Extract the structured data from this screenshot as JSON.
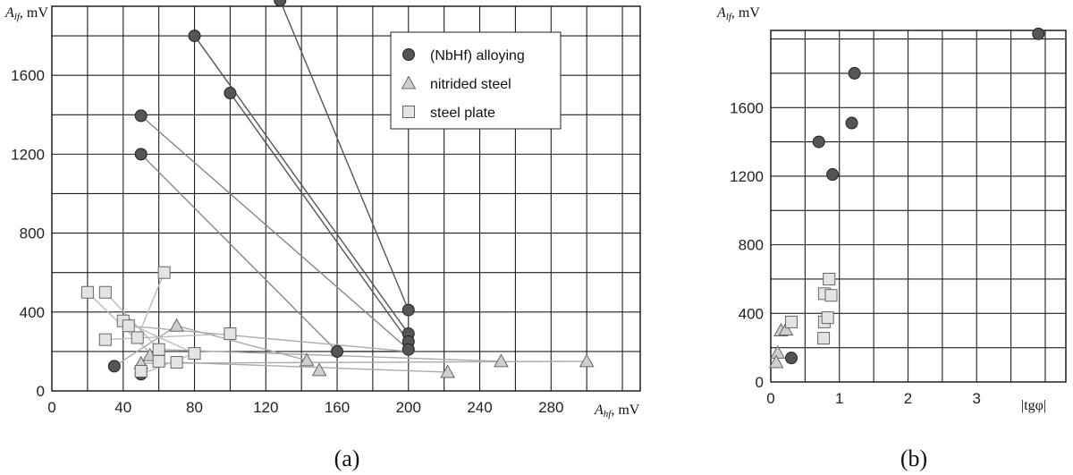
{
  "chart_data": [
    {
      "panel": "a",
      "caption": "(a)",
      "type": "scatter",
      "ylabel_sym": "A",
      "ylabel_sub": "lf",
      "ylabel_unit": ", mV",
      "xlabel_sym": "A",
      "xlabel_sub": "hf",
      "xlabel_unit": ", mV",
      "xlim": [
        0,
        330
      ],
      "ylim": [
        0,
        1950
      ],
      "x_ticks": [
        0,
        40,
        80,
        120,
        160,
        200,
        240,
        280
      ],
      "y_ticks": [
        0,
        400,
        800,
        1200,
        1600
      ],
      "grid": true,
      "legend_placement": "top-right",
      "series": [
        {
          "name": "(NbHf) alloying",
          "marker": "circle",
          "color": "#555555",
          "points": [
            [
              128,
              1980
            ],
            [
              80,
              1800
            ],
            [
              100,
              1510
            ],
            [
              50,
              1395
            ],
            [
              50,
              1200
            ],
            [
              200,
              410
            ],
            [
              200,
              290
            ],
            [
              200,
              250
            ],
            [
              200,
              210
            ],
            [
              160,
              200
            ],
            [
              35,
              125
            ],
            [
              50,
              85
            ]
          ]
        },
        {
          "name": "nitrided steel",
          "marker": "triangle",
          "color": "#cccccc",
          "points": [
            [
              70,
              330
            ],
            [
              50,
              140
            ],
            [
              143,
              155
            ],
            [
              150,
              105
            ],
            [
              222,
              95
            ],
            [
              252,
              150
            ],
            [
              300,
              150
            ],
            [
              55,
              180
            ]
          ]
        },
        {
          "name": "steel plate",
          "marker": "square",
          "color": "#dddddd",
          "points": [
            [
              20,
              500
            ],
            [
              30,
              500
            ],
            [
              63,
              600
            ],
            [
              40,
              355
            ],
            [
              43,
              330
            ],
            [
              100,
              290
            ],
            [
              30,
              260
            ],
            [
              48,
              270
            ],
            [
              60,
              210
            ],
            [
              60,
              150
            ],
            [
              70,
              145
            ],
            [
              80,
              190
            ],
            [
              50,
              100
            ]
          ]
        }
      ],
      "lines": [
        {
          "from": [
            128,
            1980
          ],
          "to": [
            200,
            410
          ],
          "color": "#555555"
        },
        {
          "from": [
            80,
            1800
          ],
          "to": [
            200,
            290
          ],
          "color": "#555555"
        },
        {
          "from": [
            100,
            1510
          ],
          "to": [
            200,
            250
          ],
          "color": "#555555"
        },
        {
          "from": [
            50,
            1395
          ],
          "to": [
            200,
            210
          ],
          "color": "#888888"
        },
        {
          "from": [
            50,
            1200
          ],
          "to": [
            160,
            200
          ],
          "color": "#888888"
        },
        {
          "from": [
            160,
            200
          ],
          "to": [
            200,
            200
          ],
          "color": "#333333"
        },
        {
          "from": [
            35,
            125
          ],
          "to": [
            70,
            330
          ],
          "color": "#aaaaaa"
        },
        {
          "from": [
            70,
            330
          ],
          "to": [
            143,
            155
          ],
          "color": "#aaaaaa"
        },
        {
          "from": [
            50,
            140
          ],
          "to": [
            300,
            150
          ],
          "color": "#aaaaaa"
        },
        {
          "from": [
            60,
            210
          ],
          "to": [
            252,
            150
          ],
          "color": "#aaaaaa"
        },
        {
          "from": [
            70,
            145
          ],
          "to": [
            222,
            95
          ],
          "color": "#aaaaaa"
        },
        {
          "from": [
            43,
            330
          ],
          "to": [
            200,
            200
          ],
          "color": "#aaaaaa"
        },
        {
          "from": [
            20,
            500
          ],
          "to": [
            60,
            150
          ],
          "color": "#bbbbbb"
        },
        {
          "from": [
            30,
            500
          ],
          "to": [
            60,
            210
          ],
          "color": "#bbbbbb"
        },
        {
          "from": [
            63,
            600
          ],
          "to": [
            48,
            270
          ],
          "color": "#bbbbbb"
        },
        {
          "from": [
            40,
            355
          ],
          "to": [
            80,
            190
          ],
          "color": "#bbbbbb"
        },
        {
          "from": [
            30,
            260
          ],
          "to": [
            100,
            290
          ],
          "color": "#bbbbbb"
        },
        {
          "from": [
            50,
            85
          ],
          "to": [
            80,
            190
          ],
          "color": "#bbbbbb"
        }
      ]
    },
    {
      "panel": "b",
      "caption": "(b)",
      "type": "scatter",
      "ylabel_sym": "A",
      "ylabel_sub": "lf",
      "ylabel_unit": ", mV",
      "xlabel": "|tgφ|",
      "xlim": [
        0,
        4.3
      ],
      "ylim": [
        0,
        2050
      ],
      "x_ticks": [
        0,
        1,
        2,
        3
      ],
      "y_ticks": [
        0,
        400,
        800,
        1200,
        1600
      ],
      "grid": true,
      "series": [
        {
          "name": "",
          "marker": "circle",
          "color": "#555555",
          "points": [
            [
              3.9,
              2030
            ],
            [
              1.22,
              1800
            ],
            [
              1.18,
              1510
            ],
            [
              0.7,
              1400
            ],
            [
              0.9,
              1210
            ],
            [
              0.3,
              140
            ]
          ]
        },
        {
          "name": "",
          "marker": "triangle",
          "color": "#cccccc",
          "points": [
            [
              0.15,
              300
            ],
            [
              0.1,
              170
            ],
            [
              0.08,
              115
            ],
            [
              0.22,
              305
            ]
          ]
        },
        {
          "name": "",
          "marker": "square",
          "color": "#dddddd",
          "points": [
            [
              0.3,
              350
            ],
            [
              0.85,
              600
            ],
            [
              0.78,
              515
            ],
            [
              0.88,
              505
            ],
            [
              0.78,
              350
            ],
            [
              0.83,
              375
            ],
            [
              0.77,
              255
            ]
          ]
        }
      ]
    }
  ]
}
